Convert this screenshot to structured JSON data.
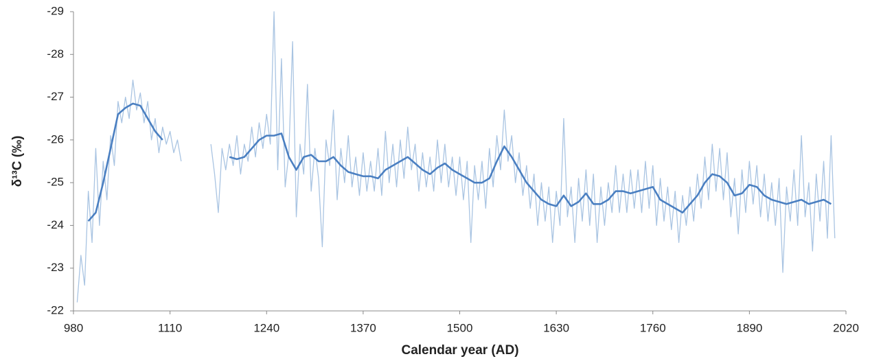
{
  "chart_data": {
    "type": "line",
    "xlabel": "Calendar year (AD)",
    "ylabel": "δ¹³C (‰)",
    "xlim": [
      980,
      2020
    ],
    "xticks": [
      980,
      1110,
      1240,
      1370,
      1500,
      1630,
      1760,
      1890,
      2020
    ],
    "ylim": [
      -22,
      -29
    ],
    "yticks": [
      -22,
      -23,
      -24,
      -25,
      -26,
      -27,
      -28,
      -29
    ],
    "series": [
      {
        "color": "#a9c4e2",
        "width": 1.3,
        "x": [
          985,
          990,
          995,
          1000,
          1005,
          1010,
          1015,
          1020,
          1025,
          1030,
          1035,
          1040,
          1045,
          1050,
          1055,
          1060,
          1065,
          1070,
          1075,
          1080,
          1085,
          1090,
          1095,
          1100,
          1105,
          1110,
          1115,
          1120,
          1125,
          1130,
          1135,
          1140,
          1145,
          1150,
          1155,
          1160,
          1165,
          1170,
          1175,
          1180,
          1185,
          1190,
          1195,
          1200,
          1205,
          1210,
          1215,
          1220,
          1225,
          1230,
          1235,
          1240,
          1245,
          1250,
          1255,
          1260,
          1265,
          1270,
          1275,
          1280,
          1285,
          1290,
          1295,
          1300,
          1305,
          1310,
          1315,
          1320,
          1325,
          1330,
          1335,
          1340,
          1345,
          1350,
          1355,
          1360,
          1365,
          1370,
          1375,
          1380,
          1385,
          1390,
          1395,
          1400,
          1405,
          1410,
          1415,
          1420,
          1425,
          1430,
          1435,
          1440,
          1445,
          1450,
          1455,
          1460,
          1465,
          1470,
          1475,
          1480,
          1485,
          1490,
          1495,
          1500,
          1505,
          1510,
          1515,
          1520,
          1525,
          1530,
          1535,
          1540,
          1545,
          1550,
          1555,
          1560,
          1565,
          1570,
          1575,
          1580,
          1585,
          1590,
          1595,
          1600,
          1605,
          1610,
          1615,
          1620,
          1625,
          1630,
          1635,
          1640,
          1645,
          1650,
          1655,
          1660,
          1665,
          1670,
          1675,
          1680,
          1685,
          1690,
          1695,
          1700,
          1705,
          1710,
          1715,
          1720,
          1725,
          1730,
          1735,
          1740,
          1745,
          1750,
          1755,
          1760,
          1765,
          1770,
          1775,
          1780,
          1785,
          1790,
          1795,
          1800,
          1805,
          1810,
          1815,
          1820,
          1825,
          1830,
          1835,
          1840,
          1845,
          1850,
          1855,
          1860,
          1865,
          1870,
          1875,
          1880,
          1885,
          1890,
          1895,
          1900,
          1905,
          1910,
          1915,
          1920,
          1925,
          1930,
          1935,
          1940,
          1945,
          1950,
          1955,
          1960,
          1965,
          1970,
          1975,
          1980,
          1985,
          1990,
          1995,
          2000,
          2005
        ],
        "values": [
          -22.2,
          -23.3,
          -22.6,
          -24.8,
          -23.6,
          -25.8,
          -24.0,
          -25.5,
          -24.6,
          -26.1,
          -25.4,
          -26.9,
          -26.4,
          -27.0,
          -26.5,
          -27.4,
          -26.7,
          -27.1,
          -26.4,
          -26.9,
          -26.0,
          -26.5,
          -25.7,
          -26.3,
          -25.9,
          -26.2,
          -25.7,
          -26.0,
          -25.5,
          null,
          null,
          null,
          null,
          null,
          null,
          null,
          -25.9,
          -25.2,
          -24.3,
          -25.8,
          -25.3,
          -25.9,
          -25.4,
          -26.1,
          -25.2,
          -25.9,
          -25.5,
          -26.3,
          -25.6,
          -26.4,
          -25.8,
          -26.6,
          -25.9,
          -29.0,
          -25.3,
          -27.9,
          -24.9,
          -25.7,
          -28.3,
          -24.2,
          -25.9,
          -25.2,
          -27.3,
          -24.8,
          -25.8,
          -25.1,
          -23.5,
          -26.0,
          -25.4,
          -26.7,
          -24.6,
          -25.8,
          -25.0,
          -26.1,
          -24.9,
          -25.6,
          -24.7,
          -25.7,
          -24.8,
          -25.5,
          -24.8,
          -25.8,
          -24.7,
          -26.2,
          -25.0,
          -25.9,
          -24.9,
          -26.0,
          -25.1,
          -26.3,
          -25.3,
          -25.9,
          -24.8,
          -25.7,
          -24.9,
          -25.6,
          -24.8,
          -26.0,
          -25.0,
          -25.9,
          -24.9,
          -25.6,
          -24.7,
          -25.6,
          -24.6,
          -25.5,
          -23.6,
          -25.4,
          -24.6,
          -25.5,
          -24.4,
          -25.8,
          -24.9,
          -26.1,
          -25.3,
          -26.7,
          -25.5,
          -26.1,
          -25.0,
          -25.7,
          -24.7,
          -25.4,
          -24.4,
          -25.2,
          -24.0,
          -25.0,
          -24.1,
          -24.9,
          -23.6,
          -24.8,
          -24.0,
          -26.5,
          -24.2,
          -24.9,
          -23.6,
          -25.1,
          -24.1,
          -25.3,
          -24.0,
          -25.2,
          -23.6,
          -24.9,
          -24.0,
          -25.0,
          -24.3,
          -25.4,
          -24.3,
          -25.2,
          -24.3,
          -25.3,
          -24.4,
          -25.3,
          -24.3,
          -25.5,
          -24.4,
          -25.4,
          -24.0,
          -25.1,
          -24.1,
          -24.9,
          -23.9,
          -24.8,
          -23.6,
          -24.7,
          -24.0,
          -24.9,
          -24.1,
          -25.2,
          -24.4,
          -25.6,
          -24.6,
          -25.9,
          -24.8,
          -25.8,
          -24.6,
          -25.7,
          -24.2,
          -25.1,
          -23.8,
          -25.3,
          -24.3,
          -25.5,
          -24.5,
          -25.4,
          -24.2,
          -25.2,
          -24.1,
          -25.0,
          -24.0,
          -25.1,
          -22.9,
          -24.9,
          -24.1,
          -25.3,
          -24.0,
          -26.1,
          -24.2,
          -25.0,
          -23.4,
          -25.2,
          -24.1,
          -25.5,
          -23.7,
          -26.1,
          -23.7
        ]
      },
      {
        "color": "#4a7fc1",
        "width": 2.6,
        "x": [
          1000,
          1010,
          1020,
          1030,
          1040,
          1050,
          1060,
          1070,
          1080,
          1090,
          1100,
          1110,
          1120,
          1130,
          1140,
          1150,
          1160,
          1170,
          1180,
          1190,
          1200,
          1210,
          1220,
          1230,
          1240,
          1250,
          1260,
          1270,
          1280,
          1290,
          1300,
          1310,
          1320,
          1330,
          1340,
          1350,
          1360,
          1370,
          1380,
          1390,
          1400,
          1410,
          1420,
          1430,
          1440,
          1450,
          1460,
          1470,
          1480,
          1490,
          1500,
          1510,
          1520,
          1530,
          1540,
          1550,
          1560,
          1570,
          1580,
          1590,
          1600,
          1610,
          1620,
          1630,
          1640,
          1650,
          1660,
          1670,
          1680,
          1690,
          1700,
          1710,
          1720,
          1730,
          1740,
          1750,
          1760,
          1770,
          1780,
          1790,
          1800,
          1810,
          1820,
          1830,
          1840,
          1850,
          1860,
          1870,
          1880,
          1890,
          1900,
          1910,
          1920,
          1930,
          1940,
          1950,
          1960,
          1970,
          1980,
          1990,
          2000
        ],
        "values": [
          -24.1,
          -24.3,
          -25.0,
          -25.8,
          -26.6,
          -26.75,
          -26.85,
          -26.8,
          -26.5,
          -26.2,
          -26.0,
          null,
          null,
          null,
          null,
          null,
          null,
          null,
          null,
          -25.6,
          -25.55,
          -25.6,
          -25.8,
          -26.0,
          -26.1,
          -26.1,
          -26.15,
          -25.6,
          -25.3,
          -25.6,
          -25.65,
          -25.5,
          -25.5,
          -25.6,
          -25.4,
          -25.25,
          -25.2,
          -25.15,
          -25.15,
          -25.1,
          -25.3,
          -25.4,
          -25.5,
          -25.6,
          -25.45,
          -25.3,
          -25.2,
          -25.35,
          -25.45,
          -25.3,
          -25.2,
          -25.1,
          -25.0,
          -25.0,
          -25.1,
          -25.5,
          -25.85,
          -25.6,
          -25.3,
          -25.0,
          -24.8,
          -24.6,
          -24.5,
          -24.45,
          -24.7,
          -24.45,
          -24.55,
          -24.75,
          -24.5,
          -24.5,
          -24.6,
          -24.8,
          -24.8,
          -24.75,
          -24.8,
          -24.85,
          -24.9,
          -24.6,
          -24.5,
          -24.4,
          -24.3,
          -24.5,
          -24.7,
          -25.0,
          -25.2,
          -25.15,
          -25.0,
          -24.7,
          -24.75,
          -24.95,
          -24.9,
          -24.7,
          -24.6,
          -24.55,
          -24.5,
          -24.55,
          -24.6,
          -24.5,
          -24.55,
          -24.6,
          -24.5
        ]
      }
    ]
  }
}
